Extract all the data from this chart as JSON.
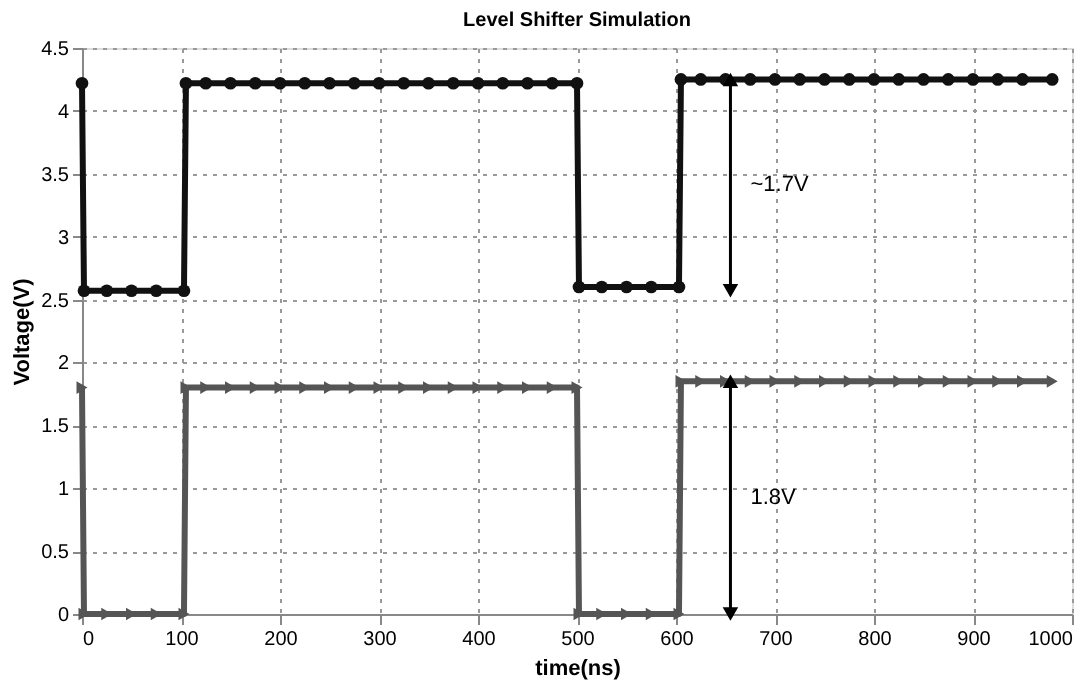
{
  "chart_data": {
    "type": "line",
    "title": "Level Shifter Simulation",
    "xlabel": "time(ns)",
    "ylabel": "Voltage(V)",
    "xlim": [
      0,
      1000
    ],
    "xticks": [
      0,
      100,
      200,
      300,
      400,
      500,
      600,
      700,
      800,
      900,
      1000
    ],
    "ylim": [
      0,
      4.5
    ],
    "yticks": [
      0,
      0.5,
      1,
      1.5,
      2,
      2.5,
      3,
      3.5,
      4,
      4.5
    ],
    "grid": true,
    "line_style": "solid",
    "series": [
      {
        "color": "#111111",
        "marker": "circle",
        "x": [
          0,
          2,
          25,
          50,
          75,
          103,
          105,
          125,
          150,
          175,
          200,
          225,
          250,
          275,
          300,
          325,
          350,
          375,
          400,
          425,
          450,
          475,
          500,
          502,
          525,
          550,
          575,
          603,
          605,
          625,
          650,
          675,
          700,
          725,
          750,
          775,
          800,
          825,
          850,
          875,
          900,
          925,
          950,
          980
        ],
        "values": [
          4.22,
          2.57,
          2.57,
          2.57,
          2.57,
          2.57,
          4.22,
          4.22,
          4.22,
          4.22,
          4.22,
          4.22,
          4.22,
          4.22,
          4.22,
          4.22,
          4.22,
          4.22,
          4.22,
          4.22,
          4.22,
          4.22,
          4.22,
          2.6,
          2.6,
          2.6,
          2.6,
          2.6,
          4.25,
          4.25,
          4.25,
          4.25,
          4.25,
          4.25,
          4.25,
          4.25,
          4.25,
          4.25,
          4.25,
          4.25,
          4.25,
          4.25,
          4.25,
          4.25
        ]
      },
      {
        "color": "#555555",
        "marker": "triangle",
        "x": [
          0,
          2,
          25,
          50,
          75,
          103,
          105,
          125,
          150,
          175,
          200,
          225,
          250,
          275,
          300,
          325,
          350,
          375,
          400,
          425,
          450,
          475,
          500,
          502,
          525,
          550,
          575,
          603,
          605,
          625,
          650,
          675,
          700,
          725,
          750,
          775,
          800,
          825,
          850,
          875,
          900,
          925,
          950,
          980
        ],
        "values": [
          1.8,
          0,
          0,
          0,
          0,
          0,
          1.8,
          1.8,
          1.8,
          1.8,
          1.8,
          1.8,
          1.8,
          1.8,
          1.8,
          1.8,
          1.8,
          1.8,
          1.8,
          1.8,
          1.8,
          1.8,
          1.8,
          0,
          0,
          0,
          0,
          0,
          1.85,
          1.85,
          1.85,
          1.85,
          1.85,
          1.85,
          1.85,
          1.85,
          1.85,
          1.85,
          1.85,
          1.85,
          1.85,
          1.85,
          1.85,
          1.85
        ]
      }
    ],
    "annotations": [
      "~1.7V",
      "1.8V"
    ]
  }
}
